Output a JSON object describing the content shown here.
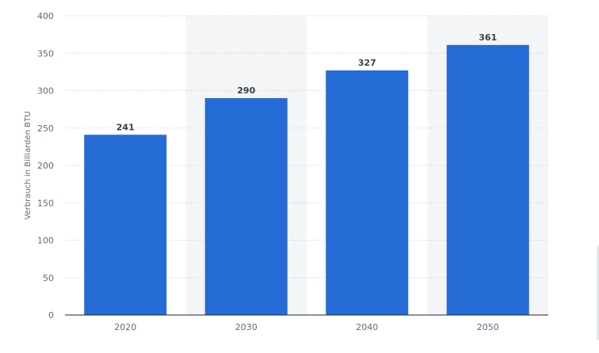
{
  "chart_data": {
    "type": "bar",
    "categories": [
      "2020",
      "2030",
      "2040",
      "2050"
    ],
    "values": [
      241,
      290,
      327,
      361
    ],
    "data_labels": [
      "241",
      "290",
      "327",
      "361"
    ],
    "title": "",
    "xlabel": "",
    "ylabel": "Verbrauch in Billiarden BTU",
    "ylim": [
      0,
      400
    ],
    "yticks": [
      0,
      50,
      100,
      150,
      200,
      250,
      300,
      350,
      400
    ],
    "grid": true,
    "alternating_bands": true,
    "colors": {
      "bar": "#246bd6",
      "band": "#f4f5f7"
    }
  }
}
